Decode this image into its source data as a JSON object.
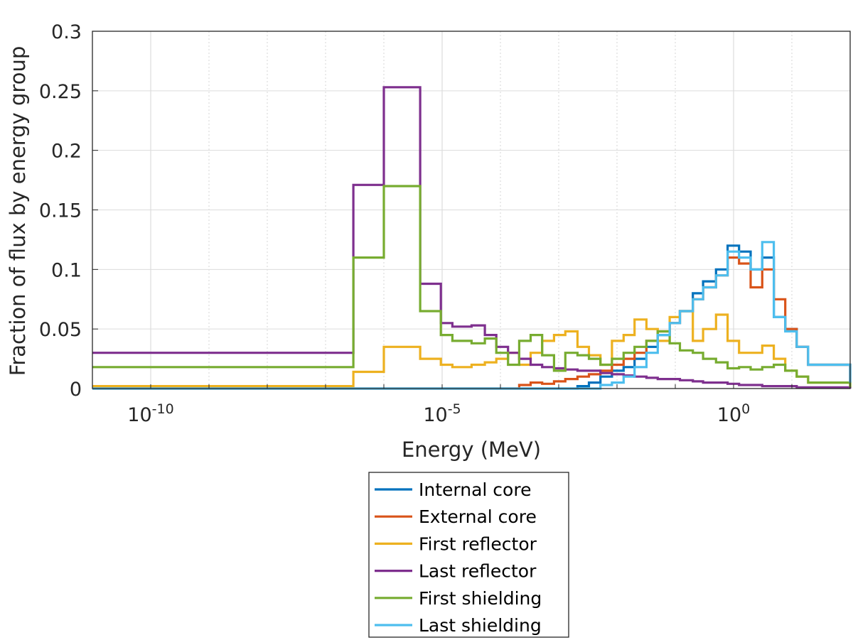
{
  "chart_data": {
    "type": "line",
    "style": "stairs",
    "xlabel": "Energy (MeV)",
    "ylabel": "Fraction of flux by energy group",
    "xscale": "log",
    "xlim": [
      1e-11,
      100
    ],
    "ylim": [
      0,
      0.3
    ],
    "grid": true,
    "legend_position": "below plot",
    "x_ticks": [
      {
        "value": 1e-10,
        "base": "10",
        "exp": "-10"
      },
      {
        "value": 1e-05,
        "base": "10",
        "exp": "-5"
      },
      {
        "value": 1,
        "base": "10",
        "exp": "0"
      }
    ],
    "y_ticks": [
      {
        "value": 0,
        "label": "0"
      },
      {
        "value": 0.05,
        "label": "0.05"
      },
      {
        "value": 0.1,
        "label": "0.1"
      },
      {
        "value": 0.15,
        "label": "0.15"
      },
      {
        "value": 0.2,
        "label": "0.2"
      },
      {
        "value": 0.25,
        "label": "0.25"
      },
      {
        "value": 0.3,
        "label": "0.3"
      }
    ],
    "bin_edges": [
      1e-11,
      3e-07,
      1e-06,
      4.2e-06,
      9.5e-06,
      1.5e-05,
      3.2e-05,
      5.4e-05,
      8.5e-05,
      0.000135,
      0.00021,
      0.00033,
      0.00052,
      0.00083,
      0.0013,
      0.0021,
      0.0033,
      0.0052,
      0.0082,
      0.013,
      0.02,
      0.032,
      0.05,
      0.08,
      0.12,
      0.2,
      0.3,
      0.5,
      0.79,
      1.24,
      1.96,
      3.1,
      4.9,
      7.7,
      12.1,
      19,
      100
    ],
    "series": [
      {
        "name": "Internal core",
        "color": "#0072BD",
        "values": [
          0,
          0,
          0,
          0,
          0,
          0,
          0,
          0,
          0,
          0,
          0,
          0,
          0,
          0,
          0,
          0.002,
          0.005,
          0.01,
          0.015,
          0.018,
          0.025,
          0.035,
          0.045,
          0.055,
          0.065,
          0.08,
          0.09,
          0.1,
          0.12,
          0.115,
          0.1,
          0.11,
          0.06,
          0.05,
          0.035,
          0.02,
          0.005
        ]
      },
      {
        "name": "External core",
        "color": "#D95319",
        "values": [
          0,
          0,
          0,
          0,
          0,
          0,
          0,
          0,
          0,
          0,
          0.003,
          0.005,
          0.004,
          0.006,
          0.008,
          0.01,
          0.012,
          0.015,
          0.02,
          0.025,
          0.03,
          0.04,
          0.048,
          0.055,
          0.065,
          0.075,
          0.085,
          0.095,
          0.11,
          0.105,
          0.085,
          0.1,
          0.075,
          0.05,
          0.035,
          0.02,
          0.005
        ]
      },
      {
        "name": "First reflector",
        "color": "#EDB120",
        "values": [
          0.002,
          0.014,
          0.035,
          0.025,
          0.02,
          0.018,
          0.02,
          0.022,
          0.025,
          0.03,
          0.02,
          0.03,
          0.04,
          0.045,
          0.048,
          0.035,
          0.028,
          0.02,
          0.04,
          0.045,
          0.058,
          0.05,
          0.04,
          0.06,
          0.065,
          0.04,
          0.05,
          0.062,
          0.04,
          0.03,
          0.03,
          0.036,
          0.025,
          0.015,
          0.01,
          0.005,
          0.001
        ]
      },
      {
        "name": "Last reflector",
        "color": "#7E2F8E",
        "values": [
          0.03,
          0.171,
          0.253,
          0.088,
          0.055,
          0.052,
          0.053,
          0.045,
          0.035,
          0.03,
          0.025,
          0.02,
          0.018,
          0.017,
          0.016,
          0.015,
          0.015,
          0.013,
          0.012,
          0.011,
          0.01,
          0.009,
          0.008,
          0.008,
          0.007,
          0.006,
          0.005,
          0.005,
          0.004,
          0.003,
          0.003,
          0.002,
          0.002,
          0.002,
          0.001,
          0.001,
          0.0
        ]
      },
      {
        "name": "First shielding",
        "color": "#77AC30",
        "values": [
          0.018,
          0.11,
          0.17,
          0.065,
          0.045,
          0.04,
          0.038,
          0.042,
          0.03,
          0.02,
          0.04,
          0.045,
          0.028,
          0.015,
          0.03,
          0.028,
          0.025,
          0.02,
          0.025,
          0.03,
          0.035,
          0.04,
          0.048,
          0.038,
          0.032,
          0.03,
          0.025,
          0.022,
          0.017,
          0.018,
          0.016,
          0.018,
          0.02,
          0.015,
          0.01,
          0.005,
          0.001
        ]
      },
      {
        "name": "Last shielding",
        "color": "#4DBEEE",
        "values": [
          0,
          0,
          0,
          0,
          0,
          0,
          0,
          0,
          0,
          0,
          0,
          0,
          0,
          0,
          0,
          0,
          0,
          0.003,
          0.005,
          0.01,
          0.018,
          0.03,
          0.045,
          0.055,
          0.065,
          0.075,
          0.085,
          0.095,
          0.115,
          0.11,
          0.1,
          0.123,
          0.06,
          0.048,
          0.035,
          0.02,
          0.005
        ]
      }
    ]
  }
}
